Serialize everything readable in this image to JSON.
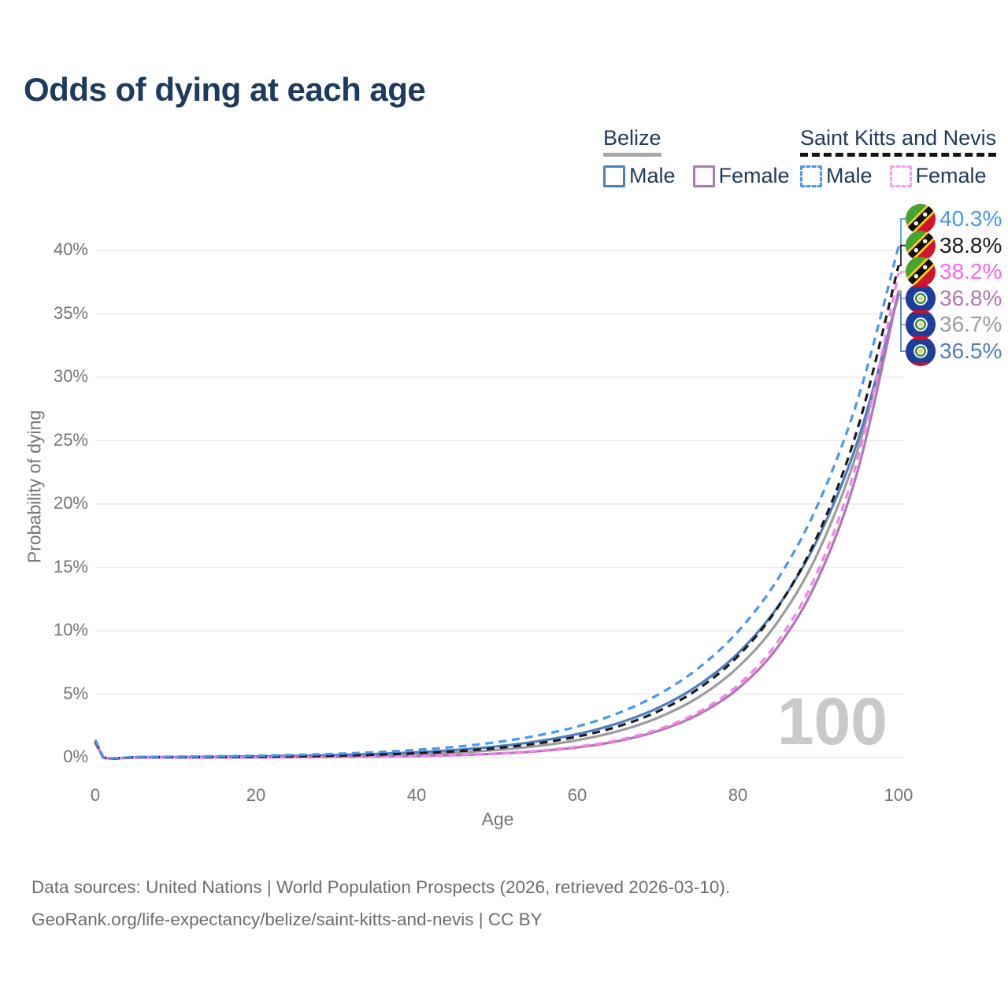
{
  "title": "Odds of dying at each age",
  "watermark": "100",
  "legend": {
    "groups": [
      {
        "label": "Belize",
        "line_style": "solid",
        "underline_color": "#a8a8a8",
        "items": [
          {
            "label": "Male",
            "color": "#4e7ec0",
            "dashed": false
          },
          {
            "label": "Female",
            "color": "#b078b3",
            "dashed": false
          }
        ]
      },
      {
        "label": "Saint Kitts and Nevis",
        "line_style": "dashed",
        "underline_color": "#141414",
        "items": [
          {
            "label": "Male",
            "color": "#4797f3",
            "dashed": true
          },
          {
            "label": "Female",
            "color": "#fb9df5",
            "dashed": true
          }
        ]
      }
    ]
  },
  "footer": {
    "line1": "Data sources: United Nations | World Population Prospects (2026, retrieved 2026-03-10).",
    "line2": "GeoRank.org/life-expectancy/belize/saint-kitts-and-nevis | CC BY"
  },
  "chart_data": {
    "type": "line",
    "title": "Odds of dying at each age",
    "xlabel": "Age",
    "ylabel": "Probability of dying",
    "xlim": [
      0,
      100
    ],
    "ylim": [
      0,
      43
    ],
    "grid": "horizontal",
    "age_counter": "100",
    "yticks": [
      {
        "value": 0,
        "label": "0%"
      },
      {
        "value": 5,
        "label": "5%"
      },
      {
        "value": 10,
        "label": "10%"
      },
      {
        "value": 15,
        "label": "15%"
      },
      {
        "value": 20,
        "label": "20%"
      },
      {
        "value": 25,
        "label": "25%"
      },
      {
        "value": 30,
        "label": "30%"
      },
      {
        "value": 35,
        "label": "35%"
      },
      {
        "value": 40,
        "label": "40%"
      }
    ],
    "xticks": [
      {
        "value": 0,
        "label": "0"
      },
      {
        "value": 20,
        "label": "20"
      },
      {
        "value": 40,
        "label": "40"
      },
      {
        "value": 60,
        "label": "60"
      },
      {
        "value": 80,
        "label": "80"
      },
      {
        "value": 100,
        "label": "100"
      }
    ],
    "x": [
      0,
      1,
      5,
      10,
      15,
      20,
      25,
      30,
      35,
      40,
      45,
      50,
      55,
      60,
      65,
      70,
      75,
      80,
      85,
      90,
      95,
      100
    ],
    "series": [
      {
        "name": "Saint Kitts and Nevis Male",
        "short": "skn-male",
        "color": "#4797f3",
        "dashed": true,
        "end_label": "40.3%",
        "end_value": 40.3,
        "label_color": "#4797f3",
        "flag": "saint-kitts-and-nevis",
        "values": [
          1.4,
          0.04,
          0.052,
          0.074,
          0.105,
          0.149,
          0.212,
          0.3,
          0.43,
          0.61,
          0.86,
          1.22,
          1.73,
          2.45,
          3.48,
          4.94,
          7.01,
          9.94,
          14.11,
          20.02,
          28.41,
          40.3
        ]
      },
      {
        "name": "Saint Kitts and Nevis Total",
        "short": "skn-total",
        "color": "#1c1c1c",
        "dashed": true,
        "end_label": "38.8%",
        "end_value": 38.8,
        "label_color": "#1c1c1c",
        "flag": "saint-kitts-and-nevis",
        "values": [
          1.3,
          0.016,
          0.021,
          0.032,
          0.047,
          0.07,
          0.104,
          0.154,
          0.229,
          0.339,
          0.5,
          0.75,
          1.11,
          1.65,
          2.44,
          3.63,
          5.39,
          8.0,
          11.87,
          17.62,
          26.15,
          38.8
        ]
      },
      {
        "name": "Saint Kitts and Nevis Female",
        "short": "skn-female",
        "color": "#f87ff0",
        "dashed": true,
        "end_label": "38.2%",
        "end_value": 38.2,
        "label_color": "#fb66f0",
        "flag": "saint-kitts-and-nevis",
        "values": [
          1.1,
          0.003,
          0.005,
          0.007,
          0.012,
          0.019,
          0.031,
          0.049,
          0.08,
          0.128,
          0.205,
          0.33,
          0.53,
          0.86,
          1.37,
          2.21,
          3.55,
          5.71,
          9.19,
          14.77,
          23.75,
          38.2
        ]
      },
      {
        "name": "Belize Female",
        "short": "belize-female",
        "color": "#b078b3",
        "dashed": false,
        "end_label": "36.8%",
        "end_value": 36.8,
        "label_color": "#b078b3",
        "flag": "belize",
        "values": [
          1.15,
          0.003,
          0.004,
          0.007,
          0.011,
          0.017,
          0.028,
          0.045,
          0.073,
          0.118,
          0.191,
          0.308,
          0.5,
          0.8,
          1.29,
          2.09,
          3.37,
          5.43,
          8.76,
          14.14,
          22.82,
          36.8
        ]
      },
      {
        "name": "Belize Total",
        "short": "belize-total",
        "color": "#9c9c9c",
        "dashed": false,
        "end_label": "36.7%",
        "end_value": 36.7,
        "label_color": "#9c9c9c",
        "flag": "belize",
        "values": [
          1.25,
          0.011,
          0.015,
          0.023,
          0.034,
          0.051,
          0.077,
          0.117,
          0.176,
          0.265,
          0.4,
          0.6,
          0.91,
          1.37,
          2.07,
          3.13,
          4.72,
          7.12,
          10.74,
          16.2,
          24.44,
          36.7
        ]
      },
      {
        "name": "Belize Male",
        "short": "belize-male",
        "color": "#4e7ec0",
        "dashed": false,
        "end_label": "36.5%",
        "end_value": 36.5,
        "label_color": "#4e7ec0",
        "flag": "belize",
        "values": [
          1.2,
          0.023,
          0.031,
          0.045,
          0.065,
          0.094,
          0.137,
          0.198,
          0.288,
          0.418,
          0.61,
          0.88,
          1.28,
          1.85,
          2.69,
          3.9,
          5.67,
          8.22,
          11.93,
          17.32,
          25.13,
          36.5
        ]
      }
    ],
    "draw_order": [
      4,
      5,
      3,
      2,
      1,
      0
    ],
    "legend_position": "top-right"
  }
}
